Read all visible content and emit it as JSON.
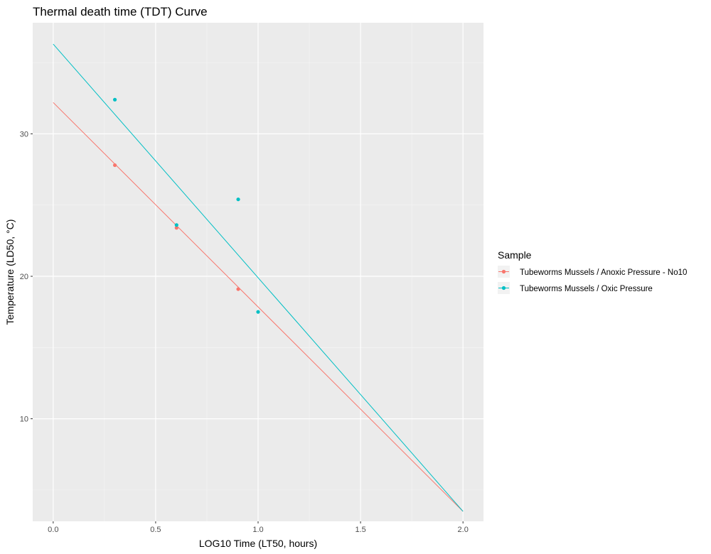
{
  "chart_data": {
    "type": "scatter",
    "title": "Thermal death time (TDT) Curve",
    "xlabel": "LOG10 Time (LT50, hours)",
    "ylabel": "Temperature (LD50, °C)",
    "xlim": [
      -0.1,
      2.1
    ],
    "ylim": [
      2.8,
      37.8
    ],
    "x_ticks": [
      0.0,
      0.5,
      1.0,
      1.5,
      2.0
    ],
    "x_tick_labels": [
      "0.0",
      "0.5",
      "1.0",
      "1.5",
      "2.0"
    ],
    "y_ticks": [
      10,
      20,
      30
    ],
    "y_tick_labels": [
      "10",
      "20",
      "30"
    ],
    "grid": true,
    "legend": {
      "title": "Sample",
      "position": "right"
    },
    "series": [
      {
        "name": "Tubeworms Mussels / Anoxic Pressure - No10",
        "color": "#F8766D",
        "points": [
          [
            0.301,
            27.8
          ],
          [
            0.602,
            23.4
          ],
          [
            0.903,
            19.1
          ]
        ],
        "fit_line": [
          [
            0.0,
            32.2
          ],
          [
            2.0,
            3.5
          ]
        ]
      },
      {
        "name": "Tubeworms Mussels / Oxic Pressure",
        "color": "#00BFC4",
        "points": [
          [
            0.301,
            32.4
          ],
          [
            0.602,
            23.6
          ],
          [
            0.903,
            25.4
          ],
          [
            1.0,
            17.5
          ]
        ],
        "fit_line": [
          [
            0.0,
            36.3
          ],
          [
            2.0,
            3.5
          ]
        ]
      }
    ]
  }
}
